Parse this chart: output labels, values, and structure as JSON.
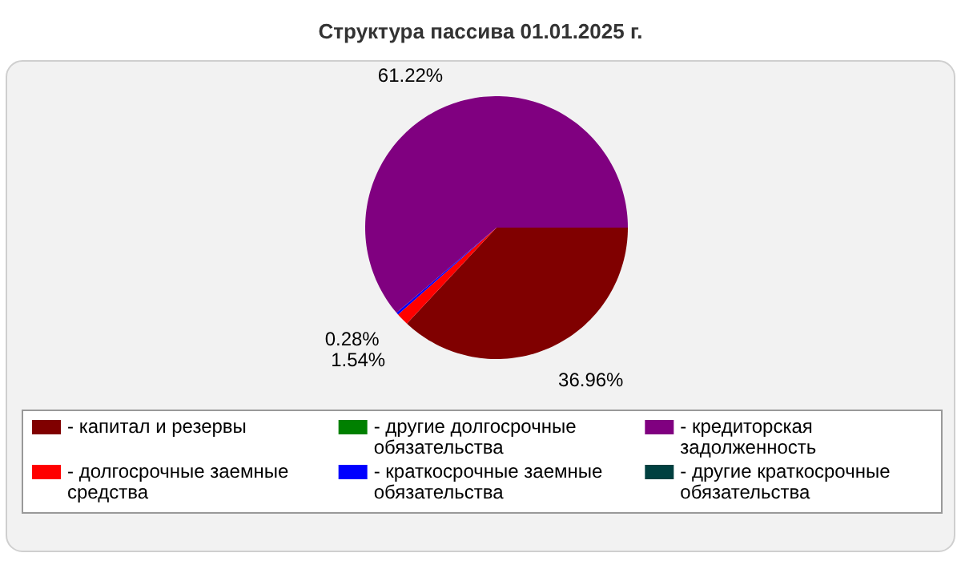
{
  "chart_data": {
    "type": "pie",
    "title": "Структура пассива 01.01.2025 г.",
    "categories": [
      "- капитал и резервы",
      "- долгосрочные заемные средства",
      "- другие долгосрочные обязательства",
      "- краткосрочные заемные обязательства",
      "- кредиторская задолженность",
      "- другие краткосрочные обязательства"
    ],
    "values": [
      36.96,
      1.54,
      0,
      0.28,
      61.22,
      0
    ],
    "value_labels": [
      "36.96%",
      "1.54%",
      null,
      "0.28%",
      "61.22%",
      null
    ],
    "colors": [
      "#800000",
      "#ff0000",
      "#008000",
      "#0000ff",
      "#800080",
      "#004040"
    ],
    "legend": "bottom"
  }
}
